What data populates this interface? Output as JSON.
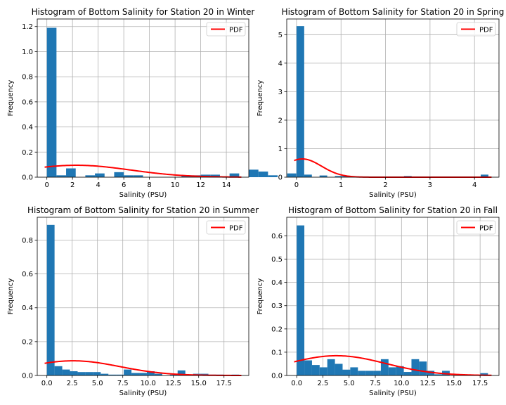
{
  "chart_data": [
    {
      "type": "bar",
      "title": "Histogram of Bottom Salinity for Station 20 in Winter",
      "xlabel": "Salinity (PSU)",
      "ylabel": "Frequency",
      "xlim": [
        -0.75,
        15.75
      ],
      "ylim": [
        0,
        1.26
      ],
      "xticks": [
        0,
        2,
        4,
        6,
        8,
        10,
        12,
        14
      ],
      "xtick_labels": [
        "0",
        "2",
        "4",
        "6",
        "8",
        "10",
        "12",
        "14"
      ],
      "yticks": [
        0,
        0.2,
        0.4,
        0.6,
        0.8,
        1.0,
        1.2
      ],
      "ytick_labels": [
        "0.0",
        "0.2",
        "0.4",
        "0.6",
        "0.8",
        "1.0",
        "1.2"
      ],
      "grid": true,
      "legend": "upper right",
      "bin_edges": [
        0,
        0.75
      ],
      "bin_width": 0.75,
      "bars": [
        1.19,
        0.015,
        0.07,
        0.0,
        0.015,
        0.03,
        0.0,
        0.04,
        0.015,
        0.015,
        0.0,
        0.0,
        0.0,
        0.0,
        0.015,
        0.015,
        0.02,
        0.02,
        0.0,
        0.03,
        0.0,
        0.06,
        0.045,
        0.015,
        0.0,
        0.03
      ],
      "series": [
        {
          "name": "PDF",
          "color": "#ff0000",
          "pdf": {
            "mu": 2.3,
            "sigma": 4.2,
            "scale": 1.0
          }
        }
      ],
      "bar_color": "#1f77b4"
    },
    {
      "type": "bar",
      "title": "Histogram of Bottom Salinity for Station 20 in Spring",
      "xlabel": "Salinity (PSU)",
      "ylabel": "Frequency",
      "xlim": [
        -0.22,
        4.55
      ],
      "ylim": [
        0,
        5.55
      ],
      "xticks": [
        0,
        1,
        2,
        3,
        4
      ],
      "xtick_labels": [
        "0",
        "1",
        "2",
        "3",
        "4"
      ],
      "yticks": [
        0,
        1,
        2,
        3,
        4,
        5
      ],
      "ytick_labels": [
        "0",
        "1",
        "2",
        "3",
        "4",
        "5"
      ],
      "grid": true,
      "legend": "upper right",
      "bin_width": 0.1725,
      "bars": [
        5.3,
        0.09,
        0.0,
        0.06,
        0.0,
        0.04,
        0.04,
        0.0,
        0.0,
        0.0,
        0.0,
        0.0,
        0.0,
        0.0,
        0.04,
        0.0,
        0.0,
        0.0,
        0.0,
        0.0,
        0.0,
        0.0,
        0.0,
        0.0,
        0.09
      ],
      "series": [
        {
          "name": "PDF",
          "color": "#ff0000",
          "pdf": {
            "mu": 0.13,
            "sigma": 0.43,
            "scale": 0.69
          }
        }
      ],
      "bar_color": "#1f77b4"
    },
    {
      "type": "bar",
      "title": "Histogram of Bottom Salinity for Station 20 in Summer",
      "xlabel": "Salinity (PSU)",
      "ylabel": "Frequency",
      "xlim": [
        -0.95,
        19.95
      ],
      "ylim": [
        0,
        0.935
      ],
      "xticks": [
        0,
        2.5,
        5,
        7.5,
        10,
        12.5,
        15,
        17.5
      ],
      "xtick_labels": [
        "0.0",
        "2.5",
        "5.0",
        "7.5",
        "10.0",
        "12.5",
        "15.0",
        "17.5"
      ],
      "yticks": [
        0,
        0.2,
        0.4,
        0.6,
        0.8
      ],
      "ytick_labels": [
        "0.0",
        "0.2",
        "0.4",
        "0.6",
        "0.8"
      ],
      "grid": true,
      "legend": "upper right",
      "bin_width": 0.76,
      "bars": [
        0.89,
        0.055,
        0.035,
        0.025,
        0.02,
        0.02,
        0.02,
        0.01,
        0.005,
        0.005,
        0.035,
        0.015,
        0.015,
        0.025,
        0.01,
        0.0,
        0.005,
        0.03,
        0.005,
        0.01,
        0.01,
        0.005,
        0.005,
        0.0,
        0.005
      ],
      "series": [
        {
          "name": "PDF",
          "color": "#ff0000",
          "pdf": {
            "mu": 2.6,
            "sigma": 4.6,
            "scale": 1.0
          }
        }
      ],
      "bar_color": "#1f77b4"
    },
    {
      "type": "bar",
      "title": "Histogram of Bottom Salinity for Station 20 in Fall",
      "xlabel": "Salinity (PSU)",
      "ylabel": "Frequency",
      "xlim": [
        -0.95,
        19.3
      ],
      "ylim": [
        0,
        0.68
      ],
      "xticks": [
        0,
        2.5,
        5,
        7.5,
        10,
        12.5,
        15,
        17.5
      ],
      "xtick_labels": [
        "0.0",
        "2.5",
        "5.0",
        "7.5",
        "10.0",
        "12.5",
        "15.0",
        "17.5"
      ],
      "yticks": [
        0,
        0.1,
        0.2,
        0.3,
        0.4,
        0.5,
        0.6
      ],
      "ytick_labels": [
        "0.0",
        "0.1",
        "0.2",
        "0.3",
        "0.4",
        "0.5",
        "0.6"
      ],
      "grid": true,
      "legend": "upper right",
      "bin_width": 0.73,
      "bars": [
        0.645,
        0.065,
        0.045,
        0.035,
        0.07,
        0.05,
        0.025,
        0.035,
        0.02,
        0.02,
        0.02,
        0.07,
        0.035,
        0.04,
        0.015,
        0.07,
        0.06,
        0.02,
        0.005,
        0.02,
        0.0,
        0.0,
        0.0,
        0.0,
        0.01
      ],
      "series": [
        {
          "name": "PDF",
          "color": "#ff0000",
          "pdf": {
            "mu": 3.8,
            "sigma": 4.7,
            "scale": 1.0
          }
        }
      ],
      "bar_color": "#1f77b4"
    }
  ]
}
